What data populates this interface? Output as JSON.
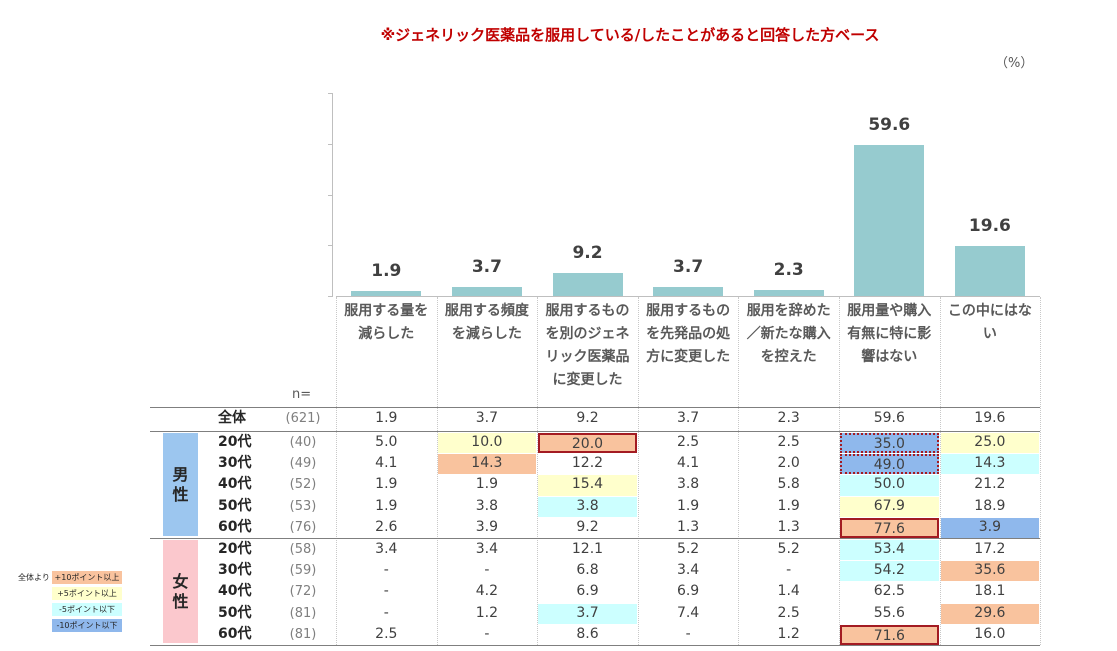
{
  "chart_data": {
    "type": "bar",
    "title": "※ジェネリック医薬品を服用している/したことがあると回答した方ベース",
    "unit": "（%）",
    "categories": [
      "服用する量を減らした",
      "服用する頻度を減らした",
      "服用するものを別のジェネリック医薬品に変更した",
      "服用するものを先発品の処方に変更した",
      "服用を辞めた／新たな購入を控えた",
      "服用量や購入有無に特に影響はない",
      "この中にはない"
    ],
    "values": [
      1.9,
      3.7,
      9.2,
      3.7,
      2.3,
      59.6,
      19.6
    ],
    "color": "#96cbcf",
    "ylim": [
      0,
      80
    ],
    "yticks": [
      0,
      20,
      40,
      60,
      80
    ]
  },
  "table": {
    "n_header": "n=",
    "total": {
      "label": "全体",
      "n": "(621)",
      "cells": [
        "1.9",
        "3.7",
        "9.2",
        "3.7",
        "2.3",
        "59.6",
        "19.6"
      ]
    },
    "groups": [
      {
        "label": "男性",
        "color": "#9cc6ef",
        "rows": [
          {
            "age": "20代",
            "n": "(40)",
            "cells": [
              "5.0",
              "10.0",
              "20.0",
              "2.5",
              "2.5",
              "35.0",
              "25.0"
            ],
            "fills": [
              null,
              "#ffffcc",
              "#f9c39e",
              null,
              null,
              "#8fb8ec",
              "#ffffcc"
            ],
            "outlines": [
              null,
              null,
              "solid",
              null,
              null,
              "dotted",
              null
            ]
          },
          {
            "age": "30代",
            "n": "(49)",
            "cells": [
              "4.1",
              "14.3",
              "12.2",
              "4.1",
              "2.0",
              "49.0",
              "14.3"
            ],
            "fills": [
              null,
              "#f9c39e",
              null,
              null,
              null,
              "#8fb8ec",
              "#ccffff"
            ],
            "outlines": [
              null,
              null,
              null,
              null,
              null,
              "dotted",
              null
            ]
          },
          {
            "age": "40代",
            "n": "(52)",
            "cells": [
              "1.9",
              "1.9",
              "15.4",
              "3.8",
              "5.8",
              "50.0",
              "21.2"
            ],
            "fills": [
              null,
              null,
              "#ffffcc",
              null,
              null,
              "#ccffff",
              null
            ]
          },
          {
            "age": "50代",
            "n": "(53)",
            "cells": [
              "1.9",
              "3.8",
              "3.8",
              "1.9",
              "1.9",
              "67.9",
              "18.9"
            ],
            "fills": [
              null,
              null,
              "#ccffff",
              null,
              null,
              "#ffffcc",
              null
            ]
          },
          {
            "age": "60代",
            "n": "(76)",
            "cells": [
              "2.6",
              "3.9",
              "9.2",
              "1.3",
              "1.3",
              "77.6",
              "3.9"
            ],
            "fills": [
              null,
              null,
              null,
              null,
              null,
              "#f9c39e",
              "#8fb8ec"
            ],
            "outlines": [
              null,
              null,
              null,
              null,
              null,
              "solid",
              null
            ]
          }
        ]
      },
      {
        "label": "女性",
        "color": "#fbc8cd",
        "rows": [
          {
            "age": "20代",
            "n": "(58)",
            "cells": [
              "3.4",
              "3.4",
              "12.1",
              "5.2",
              "5.2",
              "53.4",
              "17.2"
            ],
            "fills": [
              null,
              null,
              null,
              null,
              null,
              "#ccffff",
              null
            ]
          },
          {
            "age": "30代",
            "n": "(59)",
            "cells": [
              "-",
              "-",
              "6.8",
              "3.4",
              "-",
              "54.2",
              "35.6"
            ],
            "fills": [
              null,
              null,
              null,
              null,
              null,
              "#ccffff",
              "#f9c39e"
            ]
          },
          {
            "age": "40代",
            "n": "(72)",
            "cells": [
              "-",
              "4.2",
              "6.9",
              "6.9",
              "1.4",
              "62.5",
              "18.1"
            ]
          },
          {
            "age": "50代",
            "n": "(81)",
            "cells": [
              "-",
              "1.2",
              "3.7",
              "7.4",
              "2.5",
              "55.6",
              "29.6"
            ],
            "fills": [
              null,
              null,
              "#ccffff",
              null,
              null,
              null,
              "#f9c39e"
            ]
          },
          {
            "age": "60代",
            "n": "(81)",
            "cells": [
              "2.5",
              "-",
              "8.6",
              "-",
              "1.2",
              "71.6",
              "16.0"
            ],
            "fills": [
              null,
              null,
              null,
              null,
              null,
              "#f9c39e",
              null
            ],
            "outlines": [
              null,
              null,
              null,
              null,
              null,
              "solid",
              null
            ]
          }
        ]
      }
    ]
  },
  "legend": {
    "title": "全体より",
    "items": [
      {
        "label": "+10ポイント以上",
        "color": "#f9c39e"
      },
      {
        "label": "+5ポイント以上",
        "color": "#ffffcc"
      },
      {
        "label": "-5ポイント以下",
        "color": "#ccffff"
      },
      {
        "label": "-10ポイント以下",
        "color": "#8fb8ec"
      }
    ]
  }
}
